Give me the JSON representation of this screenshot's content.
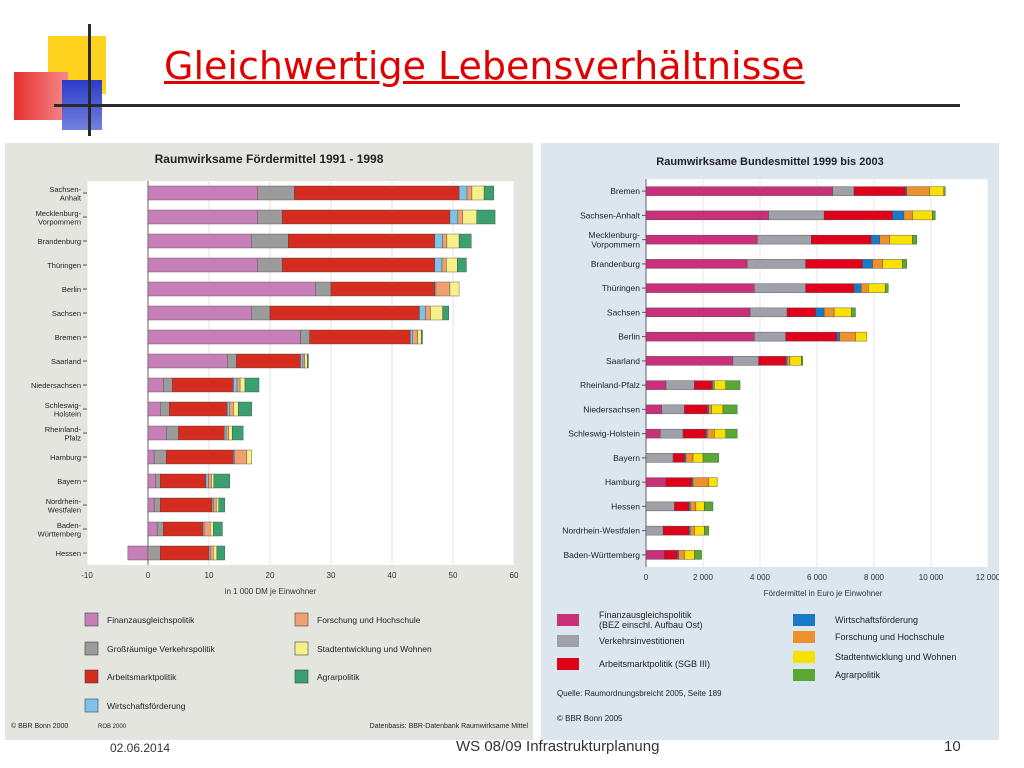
{
  "slide": {
    "title": "Gleichwertige Lebensverhältnisse",
    "footer_date": "02.06.2014",
    "footer_center": "WS 08/09 Infrastrukturplanung",
    "footer_page": "10"
  },
  "colors": {
    "title_red": "#e00000",
    "deco_yellow": "#ffd21e",
    "deco_red": "#e83030",
    "deco_blue": "#2b3cc8"
  },
  "chart_data": [
    {
      "type": "bar",
      "stacked": true,
      "orientation": "horizontal",
      "title": "Raumwirksame Fördermittel 1991 - 1998",
      "xlabel": "in 1 000 DM je Einwohner",
      "xlim": [
        -10,
        60
      ],
      "xticks": [
        "-10",
        "0",
        "10",
        "20",
        "30",
        "40",
        "50",
        "60"
      ],
      "grid": "vertical",
      "legend_position": "bottom",
      "categories": [
        "Sachsen-\nAnhalt",
        "Mecklenburg-\nVorpommern",
        "Brandenburg",
        "Thüringen",
        "Berlin",
        "Sachsen",
        "Bremen",
        "Saarland",
        "Niedersachsen",
        "Schleswig-\nHolstein",
        "Rheinland-\nPfalz",
        "Hamburg",
        "Bayern",
        "Nordrhein-\nWestfalen",
        "Baden-\nWürttemberg",
        "Hessen"
      ],
      "series": [
        {
          "name": "Finanzausgleichspolitik",
          "color": "#c77fba",
          "values": [
            18,
            18,
            17,
            18,
            27.5,
            17,
            25,
            13,
            2.5,
            2,
            3,
            1,
            1.2,
            1,
            1.5,
            -3.3
          ]
        },
        {
          "name": "Großräumige Verkehrspolitik",
          "color": "#9b9b9b",
          "values": [
            6,
            4,
            6,
            4,
            2.5,
            3,
            1.5,
            1.5,
            1.5,
            1.5,
            2,
            2,
            0.8,
            1,
            1,
            2
          ]
        },
        {
          "name": "Arbeitsmarktpolitik",
          "color": "#d42c1e",
          "values": [
            27,
            27.5,
            24,
            25,
            17,
            24.5,
            16.5,
            10.5,
            10,
            9.5,
            7.5,
            11,
            7.5,
            8.5,
            6.5,
            8
          ]
        },
        {
          "name": "Wirtschaftsförderung",
          "color": "#7fc4e8",
          "values": [
            1.3,
            1.3,
            1.3,
            1.2,
            0.2,
            1,
            0.4,
            0.4,
            0.6,
            0.4,
            0.3,
            0.2,
            0.4,
            0.2,
            0.2,
            0.2
          ]
        },
        {
          "name": "Forschung und Hochschule",
          "color": "#f0a070",
          "values": [
            0.8,
            0.8,
            0.7,
            0.7,
            2.3,
            0.8,
            0.8,
            0.3,
            0.5,
            0.6,
            0.4,
            2,
            0.5,
            0.5,
            1,
            0.5
          ]
        },
        {
          "name": "Stadtentwicklung und Wohnen",
          "color": "#f6f08a",
          "values": [
            2,
            2.3,
            2,
            1.8,
            1.5,
            2,
            0.6,
            0.4,
            0.8,
            0.8,
            0.6,
            0.8,
            0.4,
            0.4,
            0.5,
            0.6
          ]
        },
        {
          "name": "Agrarpolitik",
          "color": "#3aa070",
          "values": [
            1.6,
            3,
            2,
            1.5,
            0,
            1,
            0.2,
            0.2,
            2.3,
            2.2,
            1.8,
            0,
            2.6,
            1,
            1.5,
            1.3
          ]
        }
      ],
      "source": "Datenbasis: BBR-Datenbank Raumwirksame Mittel",
      "copyright": "© BBR Bonn 2000",
      "map_code": "ROB 2000"
    },
    {
      "type": "bar",
      "stacked": true,
      "orientation": "horizontal",
      "title": "Raumwirksame Bundesmittel 1999 bis 2003",
      "xlabel": "Fördermittel in Euro je Einwohner",
      "xlim": [
        0,
        12000
      ],
      "xticks": [
        "0",
        "2 000",
        "4 000",
        "6 000",
        "8 000",
        "10 000",
        "12 000"
      ],
      "grid": "vertical",
      "legend_position": "bottom",
      "categories": [
        "Bremen",
        "Sachsen-Anhalt",
        "Mecklenburg-\nVorpommern",
        "Brandenburg",
        "Thüringen",
        "Sachsen",
        "Berlin",
        "Saarland",
        "Rheinland-Pfalz",
        "Niedersachsen",
        "Schleswig-Holstein",
        "Bayern",
        "Hamburg",
        "Hessen",
        "Nordrhein-Westfalen",
        "Baden-Württemberg"
      ],
      "series": [
        {
          "name": "Finanzausgleichspolitik\n(BEZ einschl. Aufbau Ost)",
          "color": "#c8307a",
          "values": [
            6550,
            4300,
            3900,
            3550,
            3800,
            3650,
            3800,
            3050,
            700,
            550,
            500,
            0,
            700,
            0,
            0,
            650
          ]
        },
        {
          "name": "Verkehrsinvestitionen",
          "color": "#a0a0a8",
          "values": [
            750,
            1950,
            1900,
            2050,
            1800,
            1300,
            1100,
            900,
            1000,
            800,
            800,
            950,
            0,
            1000,
            600,
            0
          ]
        },
        {
          "name": "Arbeitsmarktpolitik (SGB III)",
          "color": "#e0001c",
          "values": [
            1800,
            2400,
            2100,
            2000,
            1700,
            1000,
            1800,
            950,
            600,
            800,
            800,
            400,
            900,
            500,
            900,
            450
          ]
        },
        {
          "name": "Wirtschaftsförderung",
          "color": "#1a7ac8",
          "values": [
            50,
            400,
            300,
            350,
            250,
            300,
            100,
            50,
            50,
            50,
            50,
            50,
            50,
            50,
            50,
            50
          ]
        },
        {
          "name": "Forschung und Hochschule",
          "color": "#f0902a",
          "values": [
            800,
            300,
            350,
            350,
            250,
            350,
            550,
            100,
            50,
            100,
            250,
            250,
            550,
            200,
            150,
            200
          ]
        },
        {
          "name": "Stadtentwicklung und Wohnen",
          "color": "#f8e100",
          "values": [
            500,
            700,
            800,
            700,
            600,
            600,
            400,
            400,
            400,
            400,
            400,
            350,
            300,
            300,
            350,
            350
          ]
        },
        {
          "name": "Agrarpolitik",
          "color": "#5aa834",
          "values": [
            50,
            100,
            150,
            150,
            100,
            150,
            0,
            50,
            500,
            500,
            400,
            550,
            0,
            300,
            150,
            250
          ]
        }
      ],
      "source": "Quelle: Raumordnungsbreicht 2005, Seite 189",
      "copyright": "© BBR Bonn 2005"
    }
  ]
}
